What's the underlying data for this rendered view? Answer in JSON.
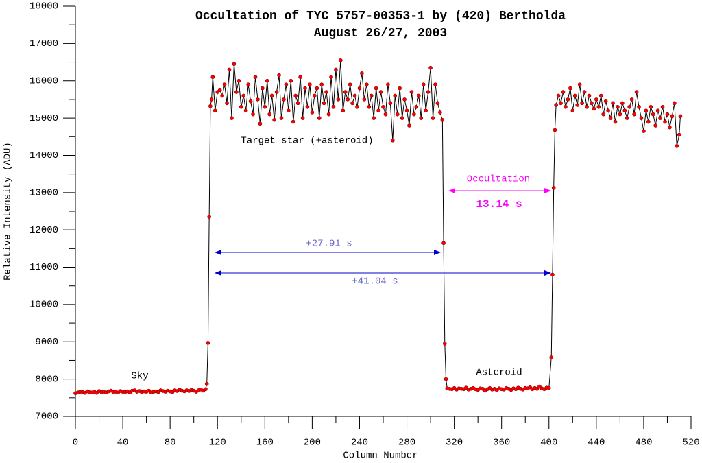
{
  "chart_data": {
    "type": "line",
    "title": "Occultation of TYC 5757-00353-1 by (420) Bertholda",
    "subtitle": "August 26/27, 2003",
    "x_label": "Column Number",
    "y_label": "Relative Intensity (ADU)",
    "annotations": [
      "Target star (+asteroid)",
      "Sky",
      "Asteroid",
      "Occultation",
      "13.14 s",
      "+27.91 s",
      "+41.04 s"
    ],
    "xlim": [
      0,
      520
    ],
    "ylim": [
      7000,
      18000
    ],
    "xticks": [
      0,
      40,
      80,
      120,
      160,
      200,
      240,
      280,
      320,
      360,
      400,
      440,
      480,
      520
    ],
    "yticks": [
      7000,
      8000,
      9000,
      10000,
      11000,
      12000,
      13000,
      14000,
      15000,
      16000,
      17000,
      18000
    ],
    "series": [
      {
        "color": "#ff0000",
        "line_color": "#000000",
        "x": [
          0,
          2,
          4,
          6,
          8,
          10,
          12,
          14,
          16,
          18,
          20,
          22,
          24,
          26,
          28,
          30,
          32,
          34,
          36,
          38,
          40,
          42,
          44,
          46,
          48,
          50,
          52,
          54,
          56,
          58,
          60,
          62,
          64,
          66,
          68,
          70,
          72,
          74,
          76,
          78,
          80,
          82,
          84,
          86,
          88,
          90,
          92,
          94,
          96,
          98,
          100,
          102,
          104,
          106,
          108,
          110,
          111,
          112,
          113,
          114,
          115,
          116,
          118,
          120,
          122,
          124,
          126,
          128,
          130,
          132,
          134,
          136,
          138,
          140,
          142,
          144,
          146,
          148,
          150,
          152,
          154,
          156,
          158,
          160,
          162,
          164,
          166,
          168,
          170,
          172,
          174,
          176,
          178,
          180,
          182,
          184,
          186,
          188,
          190,
          192,
          194,
          196,
          198,
          200,
          202,
          204,
          206,
          208,
          210,
          212,
          214,
          216,
          218,
          220,
          222,
          224,
          226,
          228,
          230,
          232,
          234,
          236,
          238,
          240,
          242,
          244,
          246,
          248,
          250,
          252,
          254,
          256,
          258,
          260,
          262,
          264,
          266,
          268,
          270,
          272,
          274,
          276,
          278,
          280,
          282,
          284,
          286,
          288,
          290,
          292,
          294,
          296,
          298,
          300,
          302,
          304,
          306,
          308,
          310,
          311,
          312,
          313,
          314,
          316,
          318,
          320,
          322,
          324,
          326,
          328,
          330,
          332,
          334,
          336,
          338,
          340,
          342,
          344,
          346,
          348,
          350,
          352,
          354,
          356,
          358,
          360,
          362,
          364,
          366,
          368,
          370,
          372,
          374,
          376,
          378,
          380,
          382,
          384,
          386,
          388,
          390,
          392,
          394,
          396,
          398,
          400,
          402,
          403,
          404,
          405,
          406,
          408,
          410,
          412,
          414,
          416,
          418,
          420,
          422,
          424,
          426,
          428,
          430,
          432,
          434,
          436,
          438,
          440,
          442,
          444,
          446,
          448,
          450,
          452,
          454,
          456,
          458,
          460,
          462,
          464,
          466,
          468,
          470,
          472,
          474,
          476,
          478,
          480,
          482,
          484,
          486,
          488,
          490,
          492,
          494,
          496,
          498,
          500,
          502,
          504,
          506,
          508,
          510,
          511
        ],
        "values": [
          7620,
          7640,
          7660,
          7650,
          7630,
          7670,
          7650,
          7640,
          7660,
          7630,
          7680,
          7650,
          7660,
          7640,
          7670,
          7690,
          7650,
          7660,
          7640,
          7680,
          7660,
          7650,
          7670,
          7640,
          7690,
          7700,
          7660,
          7680,
          7650,
          7670,
          7660,
          7690,
          7640,
          7660,
          7670,
          7650,
          7700,
          7680,
          7660,
          7690,
          7670,
          7650,
          7700,
          7680,
          7720,
          7690,
          7670,
          7700,
          7680,
          7710,
          7690,
          7660,
          7700,
          7720,
          7690,
          7730,
          7870,
          8970,
          12350,
          15320,
          15500,
          16100,
          15200,
          15700,
          15750,
          15600,
          15900,
          15400,
          16300,
          15000,
          16450,
          15700,
          16000,
          15300,
          15600,
          15200,
          15900,
          15450,
          15100,
          16100,
          15500,
          14850,
          15800,
          15300,
          16000,
          15100,
          15600,
          14950,
          15700,
          16150,
          15000,
          15500,
          15900,
          15200,
          16000,
          14900,
          15600,
          15400,
          16100,
          15000,
          15800,
          15300,
          15900,
          15150,
          15600,
          15800,
          15000,
          15900,
          15400,
          15700,
          15100,
          16100,
          15300,
          16300,
          15500,
          16550,
          15200,
          15700,
          15500,
          15900,
          15400,
          15600,
          15300,
          15800,
          16200,
          15500,
          15900,
          15300,
          15600,
          15000,
          15800,
          15200,
          15700,
          15300,
          15100,
          15900,
          15400,
          14400,
          15600,
          15100,
          15800,
          15000,
          15500,
          15200,
          14800,
          15700,
          15100,
          15300,
          15600,
          15000,
          15900,
          15200,
          15700,
          16350,
          15000,
          15900,
          15400,
          15150,
          14950,
          11650,
          8950,
          8000,
          7750,
          7740,
          7730,
          7760,
          7720,
          7750,
          7740,
          7730,
          7770,
          7720,
          7740,
          7760,
          7730,
          7710,
          7750,
          7740,
          7690,
          7730,
          7760,
          7720,
          7740,
          7700,
          7750,
          7730,
          7720,
          7760,
          7740,
          7710,
          7750,
          7730,
          7770,
          7740,
          7720,
          7760,
          7750,
          7780,
          7730,
          7760,
          7740,
          7800,
          7750,
          7730,
          7770,
          7760,
          8580,
          10800,
          13130,
          14680,
          15350,
          15600,
          15400,
          15700,
          15300,
          15500,
          15800,
          15200,
          15600,
          15350,
          15900,
          15400,
          15700,
          15300,
          15600,
          15400,
          15250,
          15500,
          15300,
          15600,
          15100,
          15450,
          15200,
          15000,
          15400,
          14900,
          15300,
          15100,
          15400,
          15200,
          15000,
          15300,
          15500,
          15100,
          15700,
          15300,
          15000,
          14650,
          15200,
          14900,
          15300,
          15100,
          14800,
          15200,
          15000,
          15300,
          14900,
          15100,
          14750,
          15050,
          15400,
          14250,
          14550,
          15050
        ]
      }
    ]
  }
}
